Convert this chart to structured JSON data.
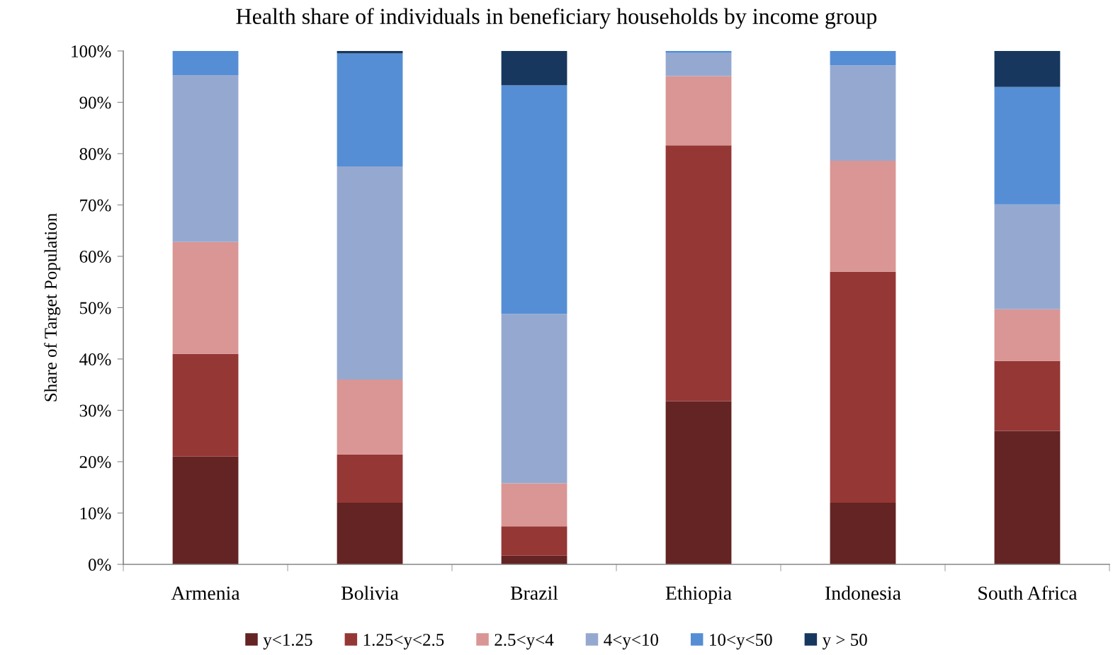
{
  "chart_data": {
    "type": "bar",
    "stacked": true,
    "title": "Health share of individuals in beneficiary households by income group",
    "ylabel": "Share of Target Population",
    "categories": [
      "Armenia",
      "Bolivia",
      "Brazil",
      "Ethiopia",
      "Indonesia",
      "South Africa"
    ],
    "series": [
      {
        "name": "y<1.25",
        "color": "#632423",
        "values": [
          21.0,
          12.0,
          1.7,
          31.8,
          12.0,
          26.0
        ]
      },
      {
        "name": "1.25<y<2.5",
        "color": "#953735",
        "values": [
          20.0,
          9.4,
          5.7,
          49.8,
          45.0,
          13.6
        ]
      },
      {
        "name": "2.5<y<4",
        "color": "#d99694",
        "values": [
          21.8,
          14.6,
          8.4,
          13.5,
          21.6,
          10.1
        ]
      },
      {
        "name": "4<y<10",
        "color": "#95a9d0",
        "values": [
          32.5,
          41.5,
          33.0,
          4.5,
          18.6,
          20.4
        ]
      },
      {
        "name": "10<y<50",
        "color": "#558ed5",
        "values": [
          4.7,
          22.0,
          44.5,
          0.4,
          2.8,
          22.9
        ]
      },
      {
        "name": "y > 50",
        "color": "#17375e",
        "values": [
          0,
          0.5,
          6.7,
          0,
          0,
          7.0
        ]
      }
    ],
    "ylim": [
      0,
      100
    ],
    "yticks": [
      {
        "value": 0,
        "label": "0%"
      },
      {
        "value": 10,
        "label": "10%"
      },
      {
        "value": 20,
        "label": "20%"
      },
      {
        "value": 30,
        "label": "30%"
      },
      {
        "value": 40,
        "label": "40%"
      },
      {
        "value": 50,
        "label": "50%"
      },
      {
        "value": 60,
        "label": "60%"
      },
      {
        "value": 70,
        "label": "70%"
      },
      {
        "value": 80,
        "label": "80%"
      },
      {
        "value": 90,
        "label": "90%"
      },
      {
        "value": 100,
        "label": "100%"
      }
    ],
    "grid": false,
    "legend": "bottom"
  }
}
